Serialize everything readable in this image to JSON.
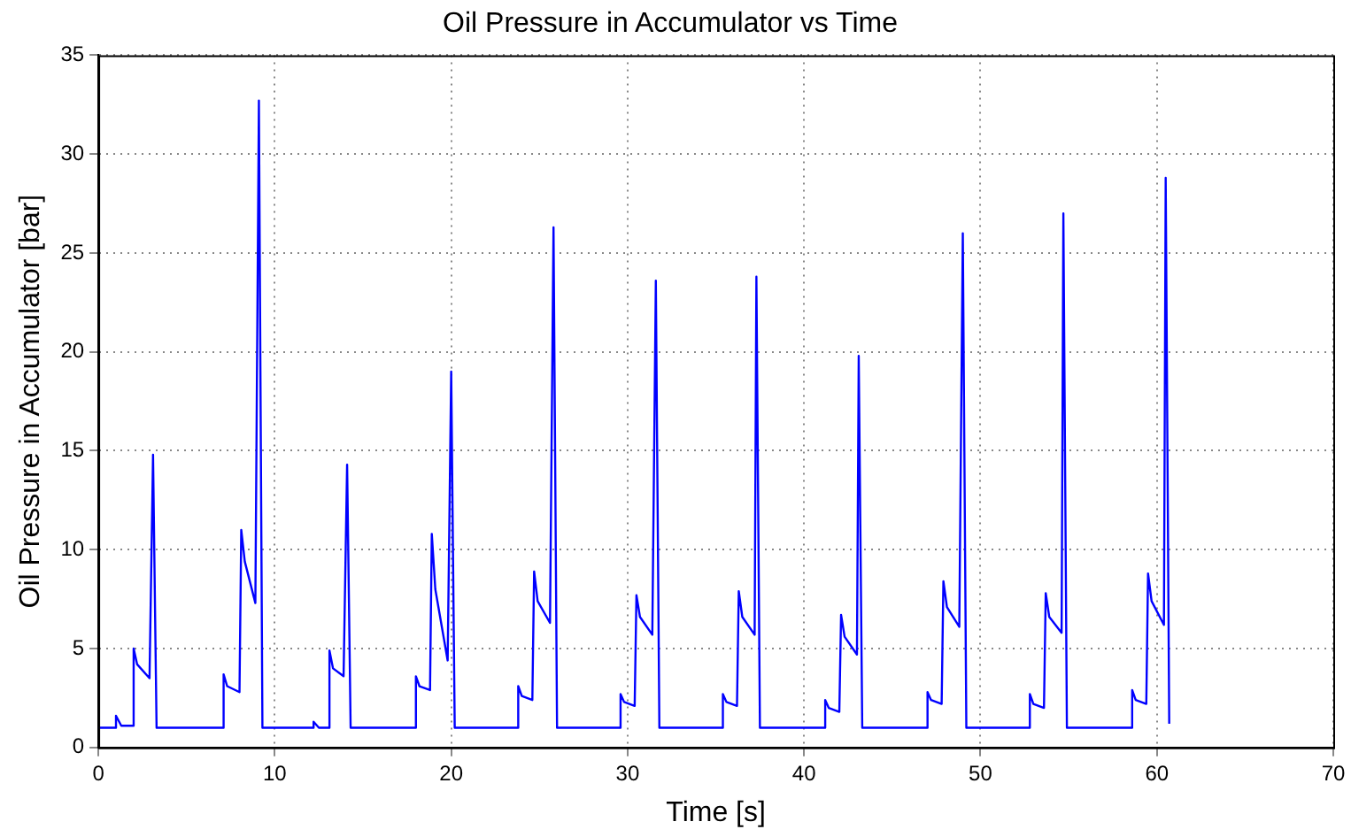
{
  "chart_data": {
    "type": "line",
    "title": "Oil Pressure in Accumulator vs Time",
    "xlabel": "Time [s]",
    "ylabel": "Oil Pressure in Accumulator [bar]",
    "xlim": [
      0,
      70
    ],
    "xticks": [
      0,
      10,
      20,
      30,
      40,
      50,
      60,
      70
    ],
    "ylim": [
      0,
      35
    ],
    "yticks": [
      0,
      5,
      10,
      15,
      20,
      25,
      30,
      35
    ],
    "grid": true,
    "legend": false,
    "marker": "none",
    "line_style": "solid",
    "series": [
      {
        "color": "#0000ff",
        "x": [
          0,
          1.0,
          1.0,
          1.3,
          2.0,
          2.0,
          2.2,
          2.9,
          3.1,
          3.3,
          7.1,
          7.1,
          7.3,
          8.0,
          8.1,
          8.3,
          8.9,
          9.1,
          9.3,
          12.2,
          12.2,
          12.5,
          13.1,
          13.1,
          13.3,
          13.9,
          14.1,
          14.3,
          18.0,
          18.0,
          18.2,
          18.8,
          18.9,
          19.1,
          19.8,
          20.0,
          20.2,
          23.8,
          23.8,
          24.0,
          24.6,
          24.7,
          24.9,
          25.6,
          25.8,
          26.0,
          29.6,
          29.6,
          29.8,
          30.4,
          30.5,
          30.7,
          31.4,
          31.6,
          31.8,
          35.4,
          35.4,
          35.6,
          36.2,
          36.3,
          36.5,
          37.2,
          37.3,
          37.5,
          41.2,
          41.2,
          41.4,
          42.0,
          42.1,
          42.3,
          43.0,
          43.1,
          43.3,
          47.0,
          47.0,
          47.2,
          47.8,
          47.9,
          48.1,
          48.8,
          49.0,
          49.2,
          52.8,
          52.8,
          53.0,
          53.6,
          53.7,
          53.9,
          54.6,
          54.7,
          54.9,
          58.6,
          58.6,
          58.8,
          59.4,
          59.5,
          59.7,
          60.4,
          60.5,
          60.7
        ],
        "values": [
          1,
          1,
          1.6,
          1.1,
          1.1,
          5.0,
          4.2,
          3.5,
          14.8,
          1,
          1,
          3.7,
          3.1,
          2.8,
          11.0,
          9.4,
          7.3,
          32.7,
          1,
          1,
          1.3,
          1.0,
          1.0,
          4.9,
          4.0,
          3.6,
          14.3,
          1,
          1,
          3.6,
          3.1,
          2.9,
          10.8,
          8.0,
          4.4,
          19.0,
          1,
          1,
          3.1,
          2.6,
          2.4,
          8.9,
          7.4,
          6.3,
          26.3,
          1,
          1,
          2.7,
          2.3,
          2.1,
          7.7,
          6.6,
          5.7,
          23.6,
          1,
          1,
          2.7,
          2.3,
          2.1,
          7.9,
          6.6,
          5.7,
          23.8,
          1,
          1,
          2.4,
          2.0,
          1.8,
          6.7,
          5.6,
          4.7,
          19.8,
          1,
          1,
          2.8,
          2.4,
          2.2,
          8.4,
          7.1,
          6.1,
          26.0,
          1,
          1,
          2.7,
          2.2,
          2.0,
          7.8,
          6.6,
          5.8,
          27.0,
          1,
          1,
          2.9,
          2.4,
          2.2,
          8.8,
          7.4,
          6.2,
          28.8,
          1.2
        ]
      }
    ]
  }
}
